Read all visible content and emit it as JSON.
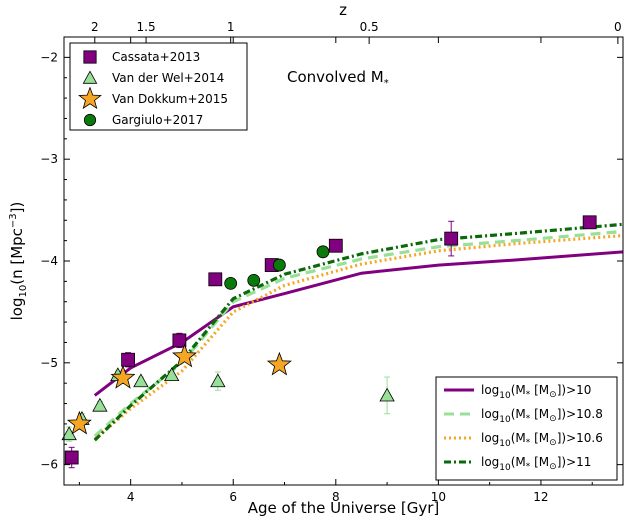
{
  "chart_data": {
    "type": "scatter",
    "title": "",
    "annotation": {
      "text_main": "Convolved M",
      "text_sub": "*"
    },
    "xlabel": "Age of the Universe [Gyr]",
    "ylabel": "log",
    "ylabel_sub": "10",
    "ylabel_rest": "(n [Mpc",
    "ylabel_sup": "−3",
    "ylabel_end": "])",
    "top_xlabel": "z",
    "xlim": [
      2.7,
      13.6
    ],
    "ylim": [
      -6.2,
      -1.8
    ],
    "xticks": [
      4,
      6,
      8,
      10,
      12
    ],
    "yticks": [
      {
        "value": -2,
        "label": "−2"
      },
      {
        "value": -3,
        "label": "−3"
      },
      {
        "value": -4,
        "label": "−4"
      },
      {
        "value": -5,
        "label": "−5"
      },
      {
        "value": -6,
        "label": "−6"
      }
    ],
    "top_xticks": [
      {
        "z": "2",
        "age": 3.3
      },
      {
        "z": "1.5",
        "age": 4.3
      },
      {
        "z": "1",
        "age": 5.95
      },
      {
        "z": "0.5",
        "age": 8.65
      },
      {
        "z": "0",
        "age": 13.5
      }
    ],
    "grid": false,
    "legend_points_position": "top-left",
    "legend_lines_position": "bottom-right",
    "point_series": [
      {
        "name": "Cassata+2013",
        "marker": "square",
        "color": "#800080",
        "points": [
          {
            "x": 2.85,
            "y": -5.93,
            "err": 0.1
          },
          {
            "x": 3.95,
            "y": -4.97,
            "err": 0.07
          },
          {
            "x": 4.95,
            "y": -4.78,
            "err": 0.07
          },
          {
            "x": 5.65,
            "y": -4.18,
            "err": 0.05
          },
          {
            "x": 6.75,
            "y": -4.04,
            "err": 0.04
          },
          {
            "x": 8.0,
            "y": -3.85,
            "err": 0.04
          },
          {
            "x": 10.25,
            "y": -3.78,
            "err": 0.17
          },
          {
            "x": 12.95,
            "y": -3.62,
            "err": 0.04
          }
        ]
      },
      {
        "name": "Van der Wel+2014",
        "marker": "triangle",
        "color": "#98e098",
        "points": [
          {
            "x": 2.8,
            "y": -5.7,
            "err": 0.07
          },
          {
            "x": 3.05,
            "y": -5.55,
            "err": 0.05
          },
          {
            "x": 3.4,
            "y": -5.42,
            "err": 0.04
          },
          {
            "x": 3.75,
            "y": -5.12,
            "err": 0.04
          },
          {
            "x": 4.2,
            "y": -5.18,
            "err": 0.04
          },
          {
            "x": 4.8,
            "y": -5.12,
            "err": 0.04
          },
          {
            "x": 5.7,
            "y": -5.18,
            "err": 0.09
          },
          {
            "x": 9.0,
            "y": -5.32,
            "err": 0.18
          }
        ]
      },
      {
        "name": "Van Dokkum+2015",
        "marker": "star",
        "color": "#f5a623",
        "points": [
          {
            "x": 3.0,
            "y": -5.6
          },
          {
            "x": 3.85,
            "y": -5.15
          },
          {
            "x": 5.05,
            "y": -4.94
          },
          {
            "x": 6.9,
            "y": -5.02
          }
        ]
      },
      {
        "name": "Gargiulo+2017",
        "marker": "circle",
        "color": "#0a7a0a",
        "points": [
          {
            "x": 5.95,
            "y": -4.22
          },
          {
            "x": 6.4,
            "y": -4.19
          },
          {
            "x": 6.9,
            "y": -4.04
          },
          {
            "x": 7.75,
            "y": -3.91
          }
        ]
      }
    ],
    "line_series": [
      {
        "name_main": "log",
        "name_sub": "10",
        "name_mid": "(M",
        "name_star": "*",
        "name_unit": " [M",
        "name_sun": "⊙",
        "name_end": "])>10",
        "color": "#800080",
        "style": "solid",
        "x": [
          3.3,
          4.0,
          5.0,
          6.0,
          7.0,
          8.5,
          10.0,
          11.5,
          13.6
        ],
        "y": [
          -5.32,
          -5.05,
          -4.8,
          -4.45,
          -4.32,
          -4.12,
          -4.04,
          -3.99,
          -3.91
        ]
      },
      {
        "name_main": "log",
        "name_sub": "10",
        "name_mid": "(M",
        "name_star": "*",
        "name_unit": " [M",
        "name_sun": "⊙",
        "name_end": "])>10.8",
        "color": "#98e098",
        "style": "dashed",
        "x": [
          3.3,
          4.0,
          5.0,
          6.0,
          7.0,
          8.5,
          10.0,
          11.5,
          13.6
        ],
        "y": [
          -5.72,
          -5.4,
          -5.0,
          -4.4,
          -4.17,
          -3.98,
          -3.86,
          -3.8,
          -3.71
        ]
      },
      {
        "name_main": "log",
        "name_sub": "10",
        "name_mid": "(M",
        "name_star": "*",
        "name_unit": " [M",
        "name_sun": "⊙",
        "name_end": "])>10.6",
        "color": "#f5a623",
        "style": "dotted",
        "x": [
          3.3,
          4.0,
          5.0,
          6.0,
          7.0,
          8.5,
          10.0,
          11.5,
          13.6
        ],
        "y": [
          -5.75,
          -5.45,
          -5.08,
          -4.5,
          -4.24,
          -4.03,
          -3.9,
          -3.83,
          -3.75
        ]
      },
      {
        "name_main": "log",
        "name_sub": "10",
        "name_mid": "(M",
        "name_star": "*",
        "name_unit": " [M",
        "name_sun": "⊙",
        "name_end": "])>11",
        "color": "#0a6a0a",
        "style": "dashdot",
        "x": [
          3.3,
          4.0,
          5.0,
          6.0,
          7.0,
          8.5,
          10.0,
          11.5,
          13.6
        ],
        "y": [
          -5.76,
          -5.42,
          -4.98,
          -4.37,
          -4.13,
          -3.93,
          -3.79,
          -3.73,
          -3.64
        ]
      }
    ]
  }
}
